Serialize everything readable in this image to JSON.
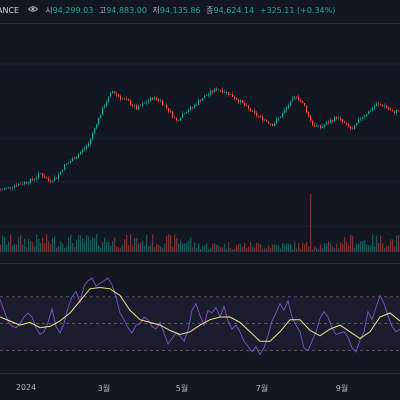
{
  "header": {
    "symbol": "ANCE",
    "ohlc": [
      {
        "label": "시",
        "value": "94,299.03"
      },
      {
        "label": "고",
        "value": "94,883.00"
      },
      {
        "label": "저",
        "value": "94,135.86"
      },
      {
        "label": "종",
        "value": "94,624.14"
      }
    ],
    "change": "+325.11 (+0.34%)",
    "eye_icon": "eye-icon"
  },
  "colors": {
    "background": "#131722",
    "up": "#26a69a",
    "down": "#ef5350",
    "rsi_line": "#7e57c2",
    "rsi_ma": "#f0e68c",
    "rsi_band": "#7e57c2"
  },
  "time_axis": [
    "2024",
    "3월",
    "5월",
    "7월",
    "9월"
  ],
  "chart_data": [
    {
      "type": "candlestick",
      "title": "",
      "x": [
        "2024",
        "3월",
        "5월",
        "7월",
        "9월"
      ],
      "close_path": [
        [
          0,
          42500
        ],
        [
          8,
          43000
        ],
        [
          16,
          43800
        ],
        [
          24,
          44300
        ],
        [
          32,
          45000
        ],
        [
          40,
          46500
        ],
        [
          48,
          44800
        ],
        [
          56,
          45500
        ],
        [
          64,
          48500
        ],
        [
          72,
          50000
        ],
        [
          80,
          51800
        ],
        [
          88,
          53800
        ],
        [
          96,
          59000
        ],
        [
          104,
          63500
        ],
        [
          112,
          66800
        ],
        [
          120,
          65200
        ],
        [
          128,
          64200
        ],
        [
          136,
          62500
        ],
        [
          144,
          63800
        ],
        [
          152,
          65200
        ],
        [
          160,
          64400
        ],
        [
          168,
          62200
        ],
        [
          176,
          59500
        ],
        [
          184,
          61800
        ],
        [
          192,
          62800
        ],
        [
          200,
          64800
        ],
        [
          208,
          66200
        ],
        [
          216,
          67400
        ],
        [
          224,
          66800
        ],
        [
          232,
          65600
        ],
        [
          240,
          64200
        ],
        [
          248,
          62400
        ],
        [
          256,
          60800
        ],
        [
          264,
          59800
        ],
        [
          272,
          58600
        ],
        [
          280,
          60600
        ],
        [
          288,
          63400
        ],
        [
          296,
          65800
        ],
        [
          304,
          63000
        ],
        [
          312,
          58600
        ],
        [
          320,
          57800
        ],
        [
          328,
          59200
        ],
        [
          336,
          60400
        ],
        [
          344,
          58800
        ],
        [
          352,
          57200
        ],
        [
          360,
          60200
        ],
        [
          368,
          61800
        ],
        [
          376,
          63600
        ],
        [
          384,
          63200
        ],
        [
          392,
          61600
        ],
        [
          400,
          62200
        ]
      ],
      "ylim": [
        40000,
        75000
      ],
      "xlabel": "",
      "ylabel": ""
    },
    {
      "type": "line",
      "title": "",
      "series_path": [
        [
          0,
          68
        ],
        [
          4,
          60
        ],
        [
          8,
          52
        ],
        [
          12,
          48
        ],
        [
          16,
          47
        ],
        [
          20,
          50
        ],
        [
          24,
          55
        ],
        [
          28,
          58
        ],
        [
          32,
          55
        ],
        [
          36,
          47
        ],
        [
          40,
          42
        ],
        [
          44,
          44
        ],
        [
          48,
          51
        ],
        [
          52,
          61
        ],
        [
          56,
          48
        ],
        [
          60,
          43
        ],
        [
          64,
          50
        ],
        [
          68,
          62
        ],
        [
          72,
          70
        ],
        [
          76,
          74
        ],
        [
          80,
          66
        ],
        [
          84,
          78
        ],
        [
          88,
          82
        ],
        [
          92,
          84
        ],
        [
          96,
          78
        ],
        [
          100,
          80
        ],
        [
          104,
          82
        ],
        [
          108,
          84
        ],
        [
          112,
          79
        ],
        [
          116,
          70
        ],
        [
          120,
          58
        ],
        [
          124,
          53
        ],
        [
          128,
          47
        ],
        [
          132,
          43
        ],
        [
          136,
          49
        ],
        [
          140,
          50
        ],
        [
          144,
          55
        ],
        [
          148,
          53
        ],
        [
          152,
          48
        ],
        [
          156,
          46
        ],
        [
          160,
          51
        ],
        [
          164,
          43
        ],
        [
          168,
          35
        ],
        [
          172,
          39
        ],
        [
          176,
          43
        ],
        [
          180,
          41
        ],
        [
          184,
          37
        ],
        [
          188,
          45
        ],
        [
          192,
          60
        ],
        [
          196,
          65
        ],
        [
          200,
          56
        ],
        [
          204,
          49
        ],
        [
          208,
          60
        ],
        [
          212,
          58
        ],
        [
          216,
          62
        ],
        [
          220,
          55
        ],
        [
          224,
          63
        ],
        [
          228,
          52
        ],
        [
          232,
          46
        ],
        [
          236,
          49
        ],
        [
          240,
          44
        ],
        [
          244,
          37
        ],
        [
          248,
          33
        ],
        [
          252,
          29
        ],
        [
          256,
          33
        ],
        [
          260,
          27
        ],
        [
          264,
          32
        ],
        [
          268,
          41
        ],
        [
          272,
          52
        ],
        [
          276,
          58
        ],
        [
          280,
          65
        ],
        [
          284,
          60
        ],
        [
          288,
          67
        ],
        [
          292,
          55
        ],
        [
          296,
          49
        ],
        [
          300,
          44
        ],
        [
          304,
          32
        ],
        [
          308,
          30
        ],
        [
          312,
          37
        ],
        [
          316,
          44
        ],
        [
          320,
          54
        ],
        [
          324,
          59
        ],
        [
          328,
          55
        ],
        [
          332,
          47
        ],
        [
          336,
          42
        ],
        [
          340,
          43
        ],
        [
          344,
          44
        ],
        [
          348,
          40
        ],
        [
          352,
          32
        ],
        [
          356,
          29
        ],
        [
          360,
          38
        ],
        [
          364,
          44
        ],
        [
          368,
          59
        ],
        [
          372,
          53
        ],
        [
          376,
          62
        ],
        [
          380,
          71
        ],
        [
          384,
          65
        ],
        [
          388,
          56
        ],
        [
          392,
          48
        ],
        [
          396,
          44
        ],
        [
          400,
          46
        ]
      ],
      "ma_path": [
        [
          0,
          55
        ],
        [
          10,
          52
        ],
        [
          20,
          49
        ],
        [
          30,
          51
        ],
        [
          40,
          47
        ],
        [
          50,
          48
        ],
        [
          60,
          52
        ],
        [
          70,
          58
        ],
        [
          80,
          67
        ],
        [
          90,
          76
        ],
        [
          100,
          77
        ],
        [
          110,
          76
        ],
        [
          120,
          71
        ],
        [
          130,
          60
        ],
        [
          140,
          53
        ],
        [
          150,
          51
        ],
        [
          160,
          49
        ],
        [
          170,
          45
        ],
        [
          180,
          42
        ],
        [
          190,
          44
        ],
        [
          200,
          49
        ],
        [
          210,
          53
        ],
        [
          220,
          55
        ],
        [
          230,
          55
        ],
        [
          240,
          51
        ],
        [
          250,
          44
        ],
        [
          260,
          37
        ],
        [
          270,
          37
        ],
        [
          280,
          44
        ],
        [
          290,
          53
        ],
        [
          300,
          53
        ],
        [
          310,
          45
        ],
        [
          320,
          41
        ],
        [
          330,
          46
        ],
        [
          340,
          49
        ],
        [
          350,
          44
        ],
        [
          360,
          39
        ],
        [
          370,
          44
        ],
        [
          380,
          55
        ],
        [
          390,
          58
        ],
        [
          400,
          52
        ]
      ],
      "bands": {
        "upper": 70,
        "middle": 50,
        "lower": 30
      },
      "ylim": [
        20,
        90
      ],
      "xlabel": "",
      "ylabel": ""
    }
  ]
}
